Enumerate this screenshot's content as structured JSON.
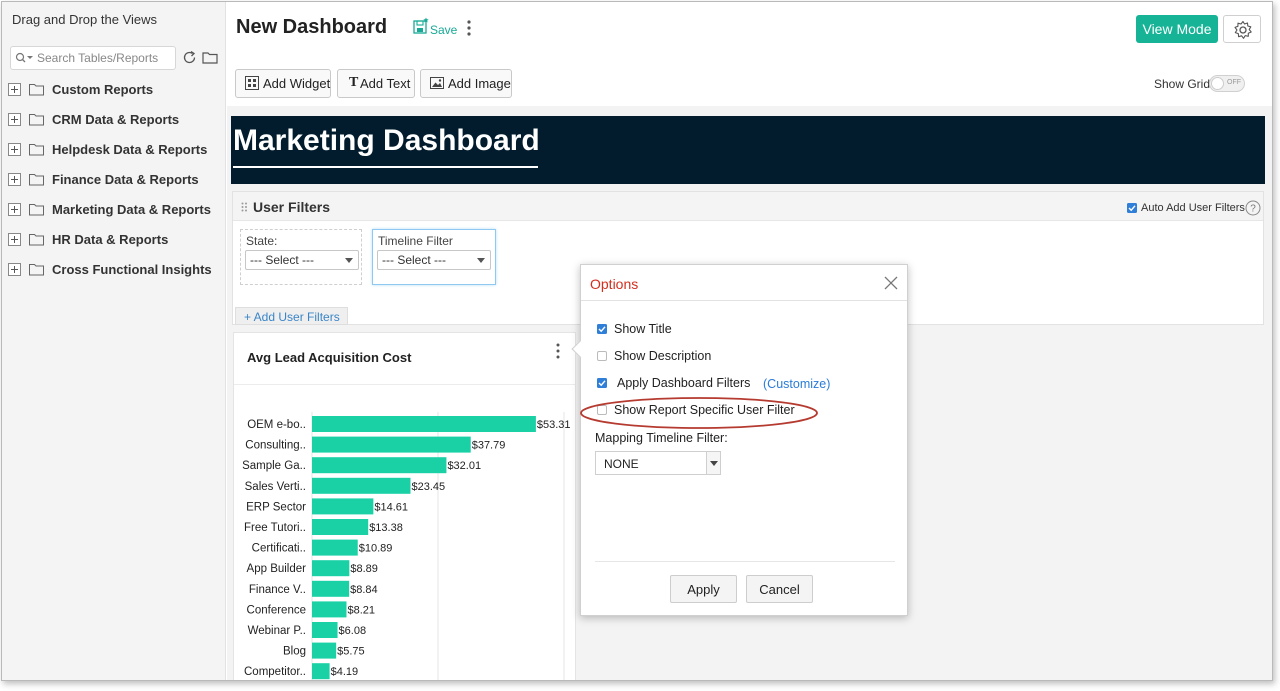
{
  "sidebar": {
    "title": "Drag and Drop the Views",
    "search_placeholder": "Search Tables/Reports",
    "items": [
      {
        "label": "Custom Reports"
      },
      {
        "label": "CRM Data & Reports"
      },
      {
        "label": "Helpdesk Data & Reports"
      },
      {
        "label": "Finance Data & Reports"
      },
      {
        "label": "Marketing Data & Reports"
      },
      {
        "label": "HR Data & Reports"
      },
      {
        "label": "Cross Functional Insights"
      }
    ]
  },
  "header": {
    "title": "New Dashboard",
    "save_label": "Save",
    "view_mode_label": "View Mode"
  },
  "toolbar": {
    "add_widget": "Add Widget",
    "add_text": "Add Text",
    "add_image": "Add Image",
    "show_grid_label": "Show Grid:",
    "grid_toggle_state": "OFF"
  },
  "banner": {
    "title": "Marketing Dashboard"
  },
  "user_filters": {
    "title": "User Filters",
    "auto_add_label": "Auto Add User Filters",
    "auto_add_checked": true,
    "filters": [
      {
        "label": "State:",
        "value": "--- Select ---"
      },
      {
        "label": "Timeline Filter",
        "value": "--- Select ---"
      }
    ],
    "add_label": "+ Add User Filters"
  },
  "widget": {
    "title": "Avg Lead Acquisition Cost"
  },
  "chart_data": {
    "type": "bar",
    "orientation": "horizontal",
    "title": "Avg Lead Acquisition Cost",
    "categories": [
      "OEM e-bo..",
      "Consulting..",
      "Sample Ga..",
      "Sales Verti..",
      "ERP Sector",
      "Free Tutori..",
      "Certificati..",
      "App Builder",
      "Finance V..",
      "Conference",
      "Webinar P..",
      "Blog",
      "Competitor.."
    ],
    "values": [
      53.31,
      37.79,
      32.01,
      23.45,
      14.61,
      13.38,
      10.89,
      8.89,
      8.84,
      8.21,
      6.08,
      5.75,
      4.19
    ],
    "data_labels": [
      "$53.31",
      "$37.79",
      "$32.01",
      "$23.45",
      "$14.61",
      "$13.38",
      "$10.89",
      "$8.89",
      "$8.84",
      "$8.21",
      "$6.08",
      "$5.75",
      "$4.19"
    ],
    "xlim": [
      0,
      60
    ],
    "bar_color": "#1ad1a6",
    "grid": true
  },
  "options_dialog": {
    "title": "Options",
    "options": [
      {
        "label": "Show Title",
        "checked": true
      },
      {
        "label": "Show Description",
        "checked": false
      },
      {
        "label": "Apply Dashboard Filters",
        "checked": true
      },
      {
        "label": "Show Report Specific User Filter",
        "checked": false
      }
    ],
    "customize_label": "(Customize)",
    "mapping_label": "Mapping Timeline Filter:",
    "mapping_value": "NONE",
    "apply_label": "Apply",
    "cancel_label": "Cancel"
  },
  "colors": {
    "accent": "#17b397",
    "banner_bg": "#021c2e",
    "dialog_title": "#d22f1f",
    "link": "#2a7cd8",
    "highlight_ring": "#b53a2f"
  }
}
